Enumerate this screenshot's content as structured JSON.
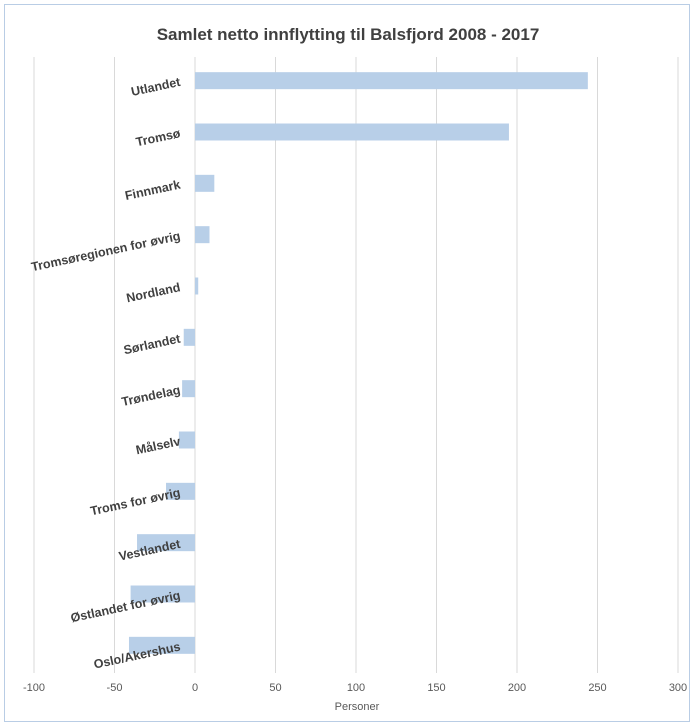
{
  "chart_data": {
    "type": "bar",
    "orientation": "horizontal",
    "title": "Samlet netto innflytting til Balsfjord 2008 - 2017",
    "xlabel": "Personer",
    "ylabel": "",
    "xlim": [
      -100,
      300
    ],
    "xticks": [
      -100,
      -50,
      0,
      50,
      100,
      150,
      200,
      250,
      300
    ],
    "grid": "vertical",
    "legend": "none",
    "bar_color": "#b8cfe8",
    "categories": [
      "Utlandet",
      "Tromsø",
      "Finnmark",
      "Tromsøregionen for øvrig",
      "Nordland",
      "Sørlandet",
      "Trøndelag",
      "Målselv",
      "Troms for øvrig",
      "Vestlandet",
      "Østlandet for øvrig",
      "Oslo/Akershus"
    ],
    "values": [
      244,
      195,
      12,
      9,
      2,
      -7,
      -8,
      -10,
      -18,
      -36,
      -40,
      -41
    ]
  }
}
